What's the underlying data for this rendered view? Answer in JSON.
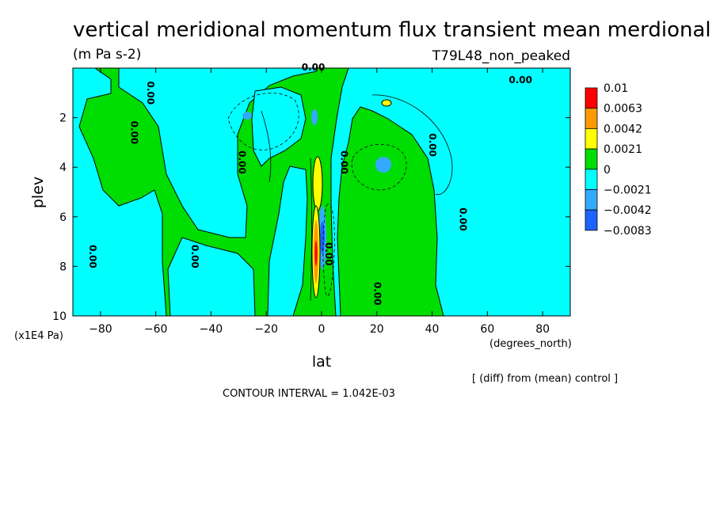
{
  "chart_data": {
    "type": "heatmap",
    "title": "vertical meridional momentum flux transient mean merdional",
    "units": "(m Pa s-2)",
    "run_label": "T79L48_non_peaked",
    "xlabel": "lat",
    "x_units": "(degrees_north)",
    "ylabel": "plev",
    "y_units": "(x1E4 Pa)",
    "xlim": [
      -90,
      90
    ],
    "ylim": [
      10,
      0
    ],
    "x_ticks": [
      -80,
      -60,
      -40,
      -20,
      0,
      20,
      40,
      60,
      80
    ],
    "y_ticks": [
      2,
      4,
      6,
      8,
      10
    ],
    "diff_note": "[ (diff) from (mean) control ]",
    "contour_interval": "CONTOUR INTERVAL = 1.042E-03",
    "colorbar": {
      "labels": [
        "0.01",
        "0.0063",
        "0.0042",
        "0.0021",
        "0",
        "−0.0021",
        "−0.0042",
        "−0.0083"
      ],
      "colors": [
        "#ff0000",
        "#ff9900",
        "#ffff00",
        "#00dd00",
        "#00ffff",
        "#33aaff",
        "#1e64ff"
      ]
    },
    "contour_labels": [
      {
        "text": "0.00",
        "x": -3,
        "y": 0.1
      },
      {
        "text": "0.00",
        "x": 72,
        "y": 0.6
      },
      {
        "text": "0.00",
        "x": -63,
        "y": 1.0
      },
      {
        "text": "0.00",
        "x": -69,
        "y": 2.6
      },
      {
        "text": "0.00",
        "x": 39,
        "y": 3.1
      },
      {
        "text": "0.00",
        "x": -30,
        "y": 3.8
      },
      {
        "text": "0.00",
        "x": 7,
        "y": 3.8
      },
      {
        "text": "0.00",
        "x": 50,
        "y": 6.1
      },
      {
        "text": "0.00",
        "x": -84,
        "y": 7.6
      },
      {
        "text": "0.00",
        "x": -47,
        "y": 7.6
      },
      {
        "text": "0.00",
        "x": 19,
        "y": 9.1
      },
      {
        "text": "0.00",
        "x": 1.5,
        "y": 7.5
      }
    ]
  }
}
